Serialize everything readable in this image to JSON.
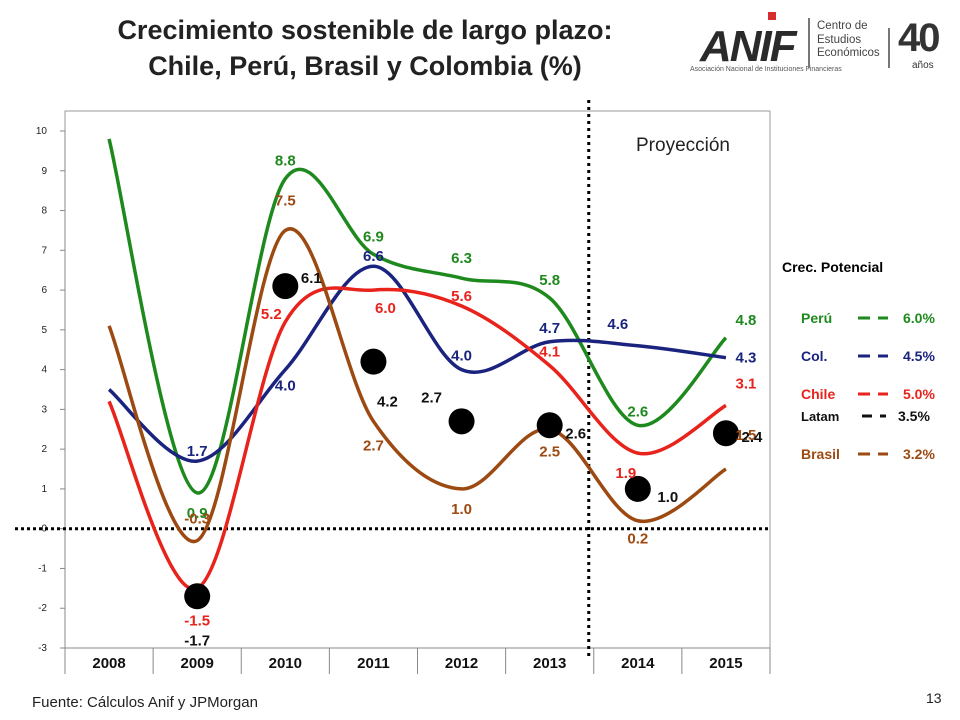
{
  "title_line1": "Crecimiento sostenible de largo plazo:",
  "title_line2": "Chile, Perú, Brasil y Colombia (%)",
  "logo": {
    "text": "ANIF",
    "subtitle": "Asociación Nacional de Instituciones Financieras",
    "center_line1": "Centro de",
    "center_line2": "Estudios",
    "center_line3": "Económicos",
    "anniv_number": "40",
    "anniv_word": "años"
  },
  "source": "Fuente: Cálculos Anif y JPMorgan",
  "page_number": "13",
  "colors": {
    "peru": "#1e8a1e",
    "colombia": "#1a237e",
    "chile": "#e8231c",
    "brasil": "#9c4a12",
    "latam": "#111111",
    "potencial_header": "#1f4e79"
  },
  "chart_data": {
    "type": "line",
    "categories": [
      "2008",
      "2009",
      "2010",
      "2011",
      "2012",
      "2013",
      "2014",
      "2015"
    ],
    "ylim": [
      -3,
      10
    ],
    "yticks": [
      "-3",
      "-2",
      "-1",
      "0",
      "1",
      "2",
      "3",
      "4",
      "5",
      "6",
      "7",
      "8",
      "9",
      "10"
    ],
    "projection_label": "Proyección",
    "series": [
      {
        "name": "Perú",
        "key": "peru",
        "values": [
          9.8,
          0.9,
          8.8,
          6.9,
          6.3,
          5.8,
          2.6,
          4.8
        ],
        "labels": [
          "",
          "0.9",
          "8.8",
          "6.9",
          "6.3",
          "5.8",
          "2.6",
          "4.8"
        ]
      },
      {
        "name": "Col.",
        "key": "colombia",
        "values": [
          3.5,
          1.7,
          4.0,
          6.6,
          4.0,
          4.7,
          4.6,
          4.3
        ],
        "labels": [
          "",
          "1.7",
          "4.0",
          "6.6",
          "4.0",
          "4.7",
          "4.6",
          "4.3"
        ]
      },
      {
        "name": "Chile",
        "key": "chile",
        "values": [
          3.2,
          -1.5,
          5.2,
          6.0,
          5.6,
          4.1,
          1.9,
          3.1
        ],
        "labels": [
          "",
          "-1.5",
          "5.2",
          "6.0",
          "5.6",
          "4.1",
          "1.9",
          "3.1"
        ]
      },
      {
        "name": "Brasil",
        "key": "brasil",
        "values": [
          5.1,
          -0.3,
          7.5,
          2.7,
          1.0,
          2.5,
          0.2,
          1.5
        ],
        "labels": [
          "",
          "-0.3",
          "7.5",
          "2.7",
          "1.0",
          "2.5",
          "0.2",
          "1.5"
        ]
      },
      {
        "name": "Latam",
        "key": "latam",
        "values": [
          null,
          -1.7,
          6.1,
          4.2,
          2.7,
          2.6,
          1.0,
          2.4
        ],
        "labels": [
          "",
          "-1.7",
          "6.1",
          "4.2",
          "2.7",
          "2.6",
          "1.0",
          "2.4"
        ]
      }
    ],
    "potential_legend": {
      "title": "Crec. Potencial",
      "items": [
        {
          "name": "Perú",
          "key": "peru",
          "value": "6.0%"
        },
        {
          "name": "Col.",
          "key": "colombia",
          "value": "4.5%"
        },
        {
          "name": "Chile",
          "key": "chile",
          "value": "5.0%"
        },
        {
          "name": "Latam",
          "key": "latam",
          "value": "3.5%"
        },
        {
          "name": "Brasil",
          "key": "brasil",
          "value": "3.2%"
        }
      ]
    }
  }
}
